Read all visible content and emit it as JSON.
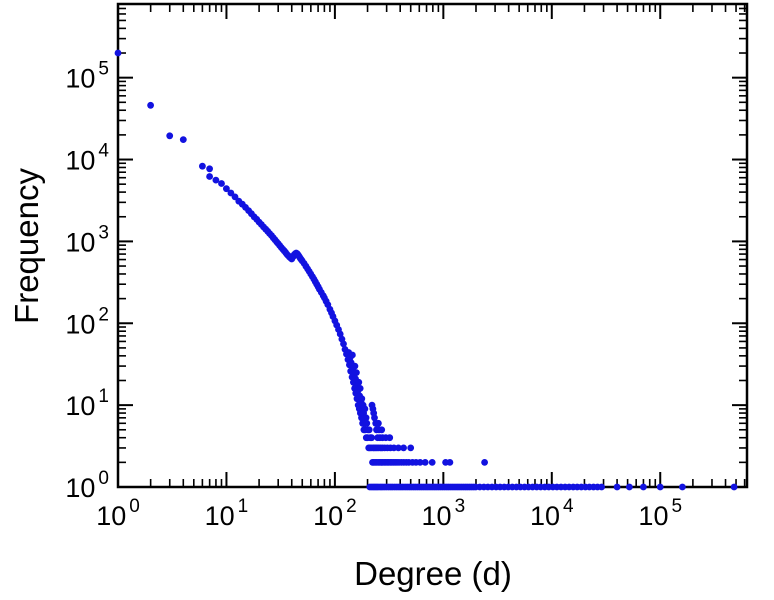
{
  "chart_data": {
    "type": "scatter",
    "title": "",
    "xlabel": "Degree (d)",
    "ylabel": "Frequency",
    "x_scale": "log",
    "y_scale": "log",
    "xlim": [
      1,
      631000
    ],
    "ylim": [
      1,
      794000
    ],
    "tick_base": "10",
    "x_tick_exponents": [
      0,
      1,
      2,
      3,
      4,
      5
    ],
    "y_tick_exponents": [
      0,
      1,
      2,
      3,
      4,
      5
    ],
    "grid": false,
    "legend": null,
    "frame_color": "#000000",
    "marker": {
      "shape": "circle",
      "color": "#1212e0",
      "radius": 3.4
    },
    "points": [
      [
        1,
        200000
      ],
      [
        2,
        46000
      ],
      [
        3,
        19500
      ],
      [
        4,
        17500
      ],
      [
        6,
        8300
      ],
      [
        7,
        7700
      ],
      [
        7,
        6200
      ],
      [
        8,
        5600
      ],
      [
        9,
        5100
      ],
      [
        10,
        4400
      ],
      [
        11,
        3900
      ],
      [
        12,
        3500
      ],
      [
        13,
        3100
      ],
      [
        14,
        2850
      ],
      [
        15,
        2600
      ],
      [
        16,
        2380
      ],
      [
        17,
        2180
      ],
      [
        18,
        2000
      ],
      [
        19,
        1860
      ],
      [
        20,
        1720
      ],
      [
        21,
        1610
      ],
      [
        22,
        1500
      ],
      [
        23,
        1410
      ],
      [
        24,
        1330
      ],
      [
        25,
        1250
      ],
      [
        26,
        1180
      ],
      [
        27,
        1110
      ],
      [
        28,
        1050
      ],
      [
        29,
        990
      ],
      [
        30,
        940
      ],
      [
        31,
        890
      ],
      [
        32,
        845
      ],
      [
        33,
        805
      ],
      [
        34,
        770
      ],
      [
        35,
        735
      ],
      [
        36,
        700
      ],
      [
        37,
        672
      ],
      [
        38,
        648
      ],
      [
        39,
        628
      ],
      [
        40,
        610
      ],
      [
        41,
        645
      ],
      [
        42,
        682
      ],
      [
        43,
        705
      ],
      [
        44,
        722
      ],
      [
        45,
        705
      ],
      [
        46,
        678
      ],
      [
        47,
        650
      ],
      [
        48,
        622
      ],
      [
        49,
        600
      ],
      [
        50,
        578
      ],
      [
        52,
        538
      ],
      [
        54,
        498
      ],
      [
        56,
        462
      ],
      [
        58,
        430
      ],
      [
        60,
        400
      ],
      [
        62,
        372
      ],
      [
        64,
        346
      ],
      [
        66,
        322
      ],
      [
        68,
        300
      ],
      [
        70,
        280
      ],
      [
        72,
        261
      ],
      [
        75,
        238
      ],
      [
        78,
        218
      ],
      [
        80,
        204
      ],
      [
        83,
        186
      ],
      [
        86,
        169
      ],
      [
        90,
        148
      ],
      [
        93,
        134
      ],
      [
        96,
        121
      ],
      [
        100,
        107
      ],
      [
        104,
        95
      ],
      [
        108,
        84
      ],
      [
        112,
        74
      ],
      [
        116,
        64
      ],
      [
        120,
        56
      ],
      [
        124,
        48
      ],
      [
        128,
        42
      ],
      [
        132,
        36
      ],
      [
        136,
        31
      ],
      [
        140,
        26
      ],
      [
        144,
        22
      ],
      [
        148,
        19
      ],
      [
        152,
        16
      ],
      [
        156,
        14
      ],
      [
        160,
        12
      ],
      [
        164,
        10
      ],
      [
        168,
        9
      ],
      [
        172,
        8
      ],
      [
        176,
        7
      ],
      [
        180,
        6
      ],
      [
        185,
        5
      ],
      [
        190,
        5
      ],
      [
        195,
        4
      ],
      [
        200,
        4
      ],
      [
        205,
        3
      ],
      [
        210,
        3
      ],
      [
        216,
        3
      ],
      [
        222,
        2
      ],
      [
        228,
        2
      ],
      [
        235,
        2
      ],
      [
        242,
        2
      ],
      [
        134,
        44
      ],
      [
        138,
        38
      ],
      [
        141,
        33
      ],
      [
        145,
        41
      ],
      [
        147,
        28
      ],
      [
        150,
        24
      ],
      [
        153,
        30
      ],
      [
        155,
        21
      ],
      [
        158,
        25
      ],
      [
        161,
        17
      ],
      [
        163,
        15
      ],
      [
        166,
        19
      ],
      [
        169,
        13
      ],
      [
        171,
        16
      ],
      [
        174,
        11
      ],
      [
        177,
        12
      ],
      [
        179,
        9
      ],
      [
        182,
        10
      ],
      [
        184,
        8
      ],
      [
        187,
        7
      ],
      [
        189,
        9
      ],
      [
        192,
        6
      ],
      [
        194,
        7
      ],
      [
        197,
        6
      ],
      [
        202,
        5
      ],
      [
        207,
        5
      ],
      [
        212,
        4
      ],
      [
        218,
        4
      ],
      [
        225,
        3
      ],
      [
        230,
        3
      ],
      [
        237,
        3
      ],
      [
        244,
        3
      ],
      [
        252,
        3
      ],
      [
        262,
        3
      ],
      [
        274,
        3
      ],
      [
        288,
        3
      ],
      [
        305,
        3
      ],
      [
        325,
        3
      ],
      [
        350,
        3
      ],
      [
        385,
        3
      ],
      [
        430,
        3
      ],
      [
        500,
        3
      ],
      [
        248,
        4
      ],
      [
        260,
        4
      ],
      [
        275,
        4
      ],
      [
        295,
        4
      ],
      [
        320,
        4
      ],
      [
        242,
        5
      ],
      [
        255,
        5
      ],
      [
        270,
        5
      ],
      [
        238,
        6
      ],
      [
        252,
        6
      ],
      [
        232,
        7
      ],
      [
        228,
        8
      ],
      [
        224,
        9
      ],
      [
        220,
        10
      ],
      [
        250,
        2
      ],
      [
        258,
        2
      ],
      [
        266,
        2
      ],
      [
        275,
        2
      ],
      [
        284,
        2
      ],
      [
        293,
        2
      ],
      [
        303,
        2
      ],
      [
        313,
        2
      ],
      [
        324,
        2
      ],
      [
        335,
        2
      ],
      [
        347,
        2
      ],
      [
        360,
        2
      ],
      [
        374,
        2
      ],
      [
        390,
        2
      ],
      [
        410,
        2
      ],
      [
        432,
        2
      ],
      [
        455,
        2
      ],
      [
        480,
        2
      ],
      [
        520,
        2
      ],
      [
        560,
        2
      ],
      [
        610,
        2
      ],
      [
        680,
        2
      ],
      [
        790,
        2
      ],
      [
        1050,
        2
      ],
      [
        1150,
        2
      ],
      [
        2400,
        2
      ],
      [
        210,
        1
      ],
      [
        218,
        1
      ],
      [
        226,
        1
      ],
      [
        234,
        1
      ],
      [
        242,
        1
      ],
      [
        250,
        1
      ],
      [
        261,
        1
      ],
      [
        273,
        1
      ],
      [
        285,
        1
      ],
      [
        298,
        1
      ],
      [
        312,
        1
      ],
      [
        326,
        1
      ],
      [
        340,
        1
      ],
      [
        356,
        1
      ],
      [
        372,
        1
      ],
      [
        389,
        1
      ],
      [
        406,
        1
      ],
      [
        424,
        1
      ],
      [
        444,
        1
      ],
      [
        464,
        1
      ],
      [
        485,
        1
      ],
      [
        506,
        1
      ],
      [
        529,
        1
      ],
      [
        553,
        1
      ],
      [
        578,
        1
      ],
      [
        604,
        1
      ],
      [
        631,
        1
      ],
      [
        660,
        1
      ],
      [
        690,
        1
      ],
      [
        721,
        1
      ],
      [
        753,
        1
      ],
      [
        787,
        1
      ],
      [
        823,
        1
      ],
      [
        860,
        1
      ],
      [
        899,
        1
      ],
      [
        940,
        1
      ],
      [
        982,
        1
      ],
      [
        1026,
        1
      ],
      [
        1073,
        1
      ],
      [
        1121,
        1
      ],
      [
        1172,
        1
      ],
      [
        1225,
        1
      ],
      [
        1280,
        1
      ],
      [
        1338,
        1
      ],
      [
        1398,
        1
      ],
      [
        1461,
        1
      ],
      [
        1527,
        1
      ],
      [
        1596,
        1
      ],
      [
        1668,
        1
      ],
      [
        1744,
        1
      ],
      [
        1823,
        1
      ],
      [
        1905,
        1
      ],
      [
        1991,
        1
      ],
      [
        2170,
        1
      ],
      [
        2365,
        1
      ],
      [
        2578,
        1
      ],
      [
        2810,
        1
      ],
      [
        3063,
        1
      ],
      [
        3339,
        1
      ],
      [
        3640,
        1
      ],
      [
        3967,
        1
      ],
      [
        4324,
        1
      ],
      [
        4713,
        1
      ],
      [
        5137,
        1
      ],
      [
        5600,
        1
      ],
      [
        6104,
        1
      ],
      [
        6653,
        1
      ],
      [
        7252,
        1
      ],
      [
        7904,
        1
      ],
      [
        8616,
        1
      ],
      [
        9391,
        1
      ],
      [
        10236,
        1
      ],
      [
        11157,
        1
      ],
      [
        12161,
        1
      ],
      [
        13256,
        1
      ],
      [
        14449,
        1
      ],
      [
        15749,
        1
      ],
      [
        17166,
        1
      ],
      [
        18711,
        1
      ],
      [
        20395,
        1
      ],
      [
        22231,
        1
      ],
      [
        24231,
        1
      ],
      [
        26412,
        1
      ],
      [
        28789,
        1
      ],
      [
        40000,
        1
      ],
      [
        52000,
        1
      ],
      [
        70000,
        1
      ],
      [
        100000,
        1
      ],
      [
        160000,
        1
      ],
      [
        480000,
        1
      ]
    ]
  }
}
